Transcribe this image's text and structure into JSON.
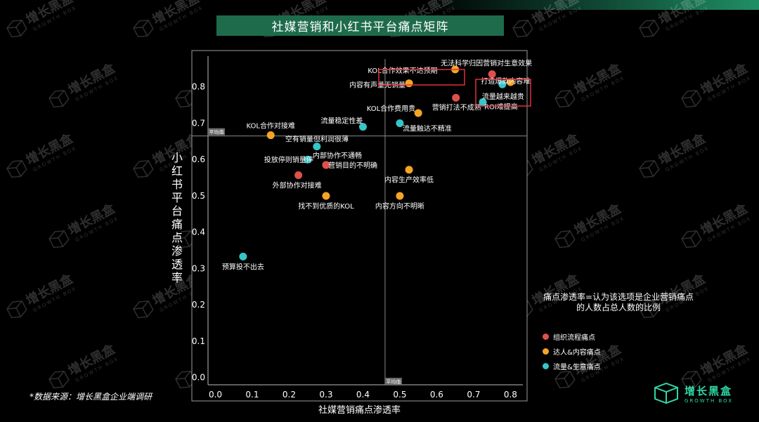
{
  "title": "社媒营销和小红书平台痛点矩阵",
  "source_note": "*数据来源：增长黑盒企业端调研",
  "note": "痛点渗透率=认为该选项是企业营销痛点的人数占总人数的比例",
  "brand": {
    "name_cn": "增长黑盒",
    "name_en": "GROWTH BOX",
    "watermark_cn": "增长黑盒",
    "watermark_en": "GROWTH BOX"
  },
  "colors": {
    "red": "#e0504a",
    "orange": "#f5a524",
    "cyan": "#35c6c8",
    "accent": "#1e6b4c"
  },
  "legend": [
    {
      "label": "组织流程痛点",
      "color": "#e0504a"
    },
    {
      "label": "达人&内容痛点",
      "color": "#f5a524"
    },
    {
      "label": "流量&生意痛点",
      "color": "#35c6c8"
    }
  ],
  "chart_data": {
    "type": "scatter",
    "xlabel": "社媒营销痛点渗透率",
    "ylabel": "小红书平台痛点渗透率",
    "xlim": [
      -0.02,
      0.845
    ],
    "ylim": [
      -0.02,
      0.9
    ],
    "xticks": [
      "0.0",
      "0.1",
      "0.2",
      "0.3",
      "0.4",
      "0.5",
      "0.6",
      "0.7",
      "0.8"
    ],
    "yticks": [
      "0.0",
      "0.1",
      "0.2",
      "0.3",
      "0.4",
      "0.5",
      "0.6",
      "0.7",
      "0.8"
    ],
    "xtick_values": [
      0,
      0.1,
      0.2,
      0.3,
      0.4,
      0.5,
      0.6,
      0.7,
      0.8
    ],
    "ytick_values": [
      0,
      0.1,
      0.2,
      0.3,
      0.4,
      0.5,
      0.6,
      0.7,
      0.8
    ],
    "avg_x": 0.46,
    "avg_y": 0.665,
    "avg_label": "平均值",
    "grid": false,
    "points": [
      {
        "label": "无法科学归因营销对生意效果",
        "x": 0.75,
        "y": 0.835,
        "cat": "red"
      },
      {
        "label": "KOL合作效果不达预期",
        "x": 0.65,
        "y": 0.848,
        "cat": "orange"
      },
      {
        "label": "内容有声量无销量",
        "x": 0.525,
        "y": 0.81,
        "cat": "orange"
      },
      {
        "label": "打造爆款内容难",
        "x": 0.8,
        "y": 0.813,
        "cat": "orange"
      },
      {
        "label": "流量越来越贵",
        "x": 0.778,
        "y": 0.807,
        "cat": "cyan"
      },
      {
        "label": "营销打法不成熟",
        "x": 0.652,
        "y": 0.77,
        "cat": "red"
      },
      {
        "label": "ROI难提高",
        "x": 0.725,
        "y": 0.758,
        "cat": "cyan"
      },
      {
        "label": "KOL合作费用贵",
        "x": 0.55,
        "y": 0.728,
        "cat": "orange"
      },
      {
        "label": "流量稳定性差",
        "x": 0.4,
        "y": 0.69,
        "cat": "cyan"
      },
      {
        "label": "流量触达不精准",
        "x": 0.5,
        "y": 0.7,
        "cat": "cyan"
      },
      {
        "label": "KOL合作对接难",
        "x": 0.15,
        "y": 0.667,
        "cat": "orange"
      },
      {
        "label": "空有销量但利润很薄",
        "x": 0.275,
        "y": 0.636,
        "cat": "cyan"
      },
      {
        "label": "内部协作不通畅",
        "x": 0.3,
        "y": 0.585,
        "cat": "red"
      },
      {
        "label": "投放停则销量停",
        "x": 0.25,
        "y": 0.6,
        "cat": "cyan"
      },
      {
        "label": "营销目的不明确",
        "x": 0.3,
        "y": 0.585,
        "cat": "red"
      },
      {
        "label": "外部协作对接难",
        "x": 0.225,
        "y": 0.557,
        "cat": "red"
      },
      {
        "label": "内容生产效率低",
        "x": 0.525,
        "y": 0.572,
        "cat": "orange"
      },
      {
        "label": "找不到优质的KOL",
        "x": 0.3,
        "y": 0.5,
        "cat": "orange"
      },
      {
        "label": "内容方向不明晰",
        "x": 0.5,
        "y": 0.5,
        "cat": "orange"
      },
      {
        "label": "预算投不出去",
        "x": 0.075,
        "y": 0.333,
        "cat": "cyan"
      }
    ],
    "highlighted": [
      "KOL合作效果不达预期",
      "打造爆款内容难",
      "流量越来越贵"
    ]
  }
}
